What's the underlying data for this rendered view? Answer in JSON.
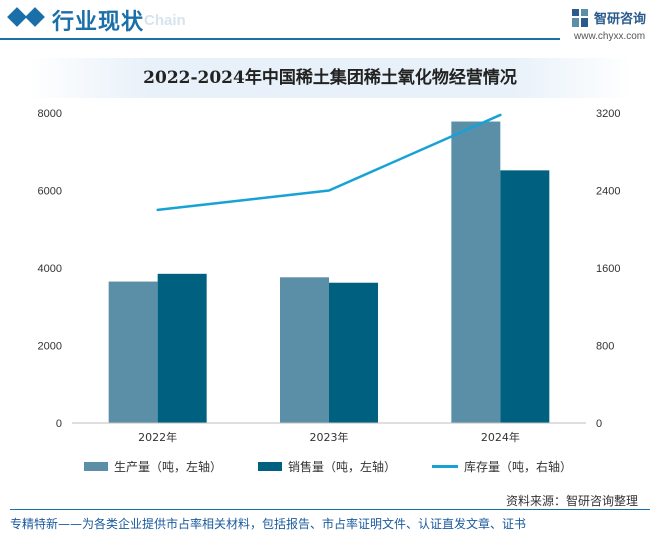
{
  "header": {
    "section_title": "行业现状",
    "section_subtitle": "Chain",
    "brand_name": "智研咨询",
    "brand_url": "www.chyxx.com"
  },
  "colors": {
    "brand": "#1a6fa8",
    "production": "#5b8fa8",
    "sales": "#00607f",
    "inventory": "#17a2d6"
  },
  "chart_data": {
    "type": "bar",
    "title": "2022-2024年中国稀土集团稀土氧化物经营情况",
    "categories": [
      "2022年",
      "2023年",
      "2024年"
    ],
    "series": [
      {
        "name": "生产量（吨，左轴）",
        "type": "bar",
        "axis": "left",
        "values": [
          3650,
          3760,
          7780
        ]
      },
      {
        "name": "销售量（吨，左轴）",
        "type": "bar",
        "axis": "left",
        "values": [
          3850,
          3620,
          6520
        ]
      },
      {
        "name": "库存量（吨，右轴）",
        "type": "line",
        "axis": "right",
        "values": [
          2200,
          2400,
          3180
        ]
      }
    ],
    "left_axis": {
      "min": 0,
      "max": 8000,
      "ticks": [
        "0",
        "2000",
        "4000",
        "6000",
        "8000"
      ]
    },
    "right_axis": {
      "min": 0,
      "max": 3200,
      "ticks": [
        "0",
        "800",
        "1600",
        "2400",
        "3200"
      ]
    },
    "grid": false,
    "legend_position": "bottom"
  },
  "legend": {
    "production": "生产量（吨，左轴）",
    "sales": "销售量（吨，左轴）",
    "inventory": "库存量（吨，右轴）"
  },
  "source": "资料来源：智研咨询整理",
  "footer": "专精特新——为各类企业提供市占率相关材料，包括报告、市占率证明文件、认证直发文章、证书"
}
